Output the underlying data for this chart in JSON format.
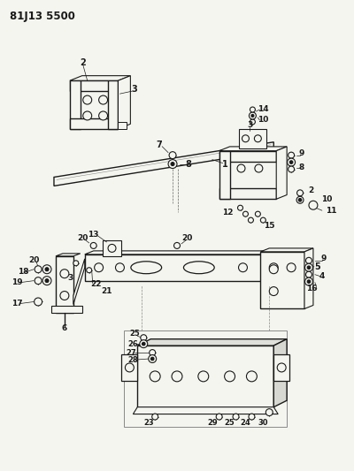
{
  "title": "81J13 5500",
  "bg": "#f5f5f0",
  "lc": "#1a1a1a",
  "fig_w": 4.0,
  "fig_h": 5.33,
  "dpi": 100
}
